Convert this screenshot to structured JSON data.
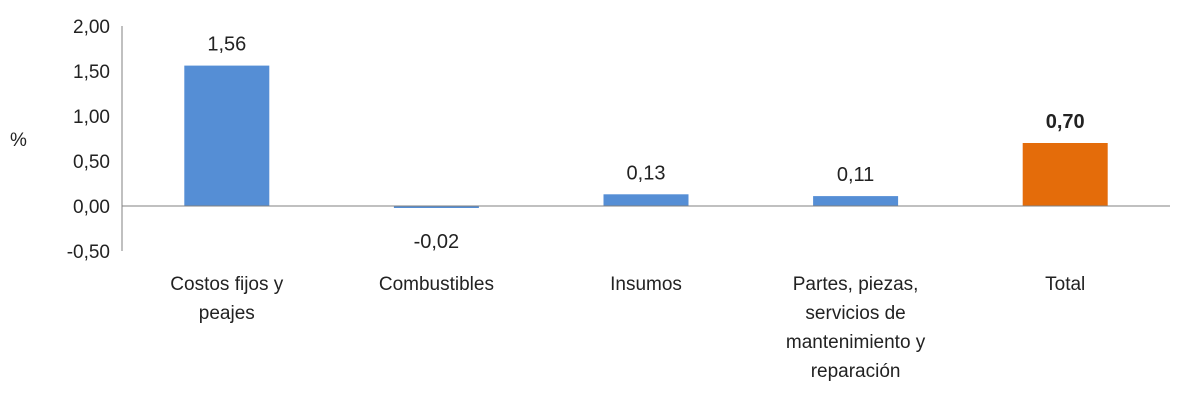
{
  "chart_data": {
    "type": "bar",
    "title": "",
    "xlabel": "",
    "ylabel": "%",
    "ylim": [
      -0.5,
      2.0
    ],
    "yticks": [
      "2,00",
      "1,50",
      "1,00",
      "0,50",
      "0,00",
      "-0,50"
    ],
    "ytick_values": [
      2.0,
      1.5,
      1.0,
      0.5,
      0.0,
      -0.5
    ],
    "categories": [
      [
        "Costos fijos y",
        "peajes"
      ],
      [
        "Combustibles"
      ],
      [
        "Insumos"
      ],
      [
        "Partes, piezas,",
        "servicios de",
        "mantenimiento y",
        "reparación"
      ],
      [
        "Total"
      ]
    ],
    "values": [
      1.56,
      -0.02,
      0.13,
      0.11,
      0.7
    ],
    "data_labels": [
      "1,56",
      "-0,02",
      "0,13",
      "0,11",
      "0,70"
    ],
    "highlight_index": 4,
    "grid": false,
    "colors": {
      "bar": "#558ED5",
      "highlight": "#E46C0A",
      "axis": "#808080"
    }
  }
}
